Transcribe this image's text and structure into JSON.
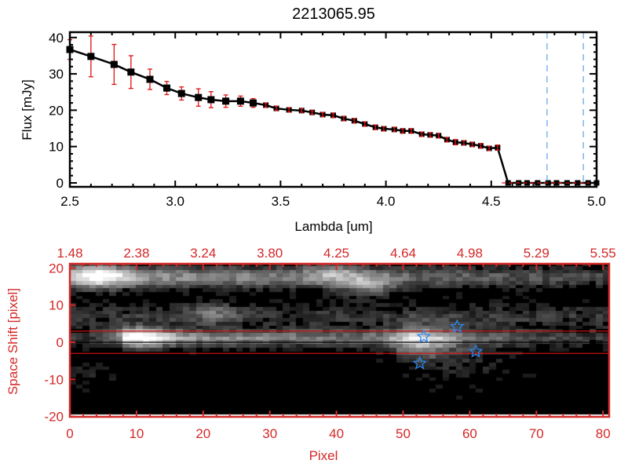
{
  "colors": {
    "axis_bottom": "#d42828",
    "errorbar": "#e01010",
    "marker": "#000000",
    "markerline": "#000000",
    "dashed_vertical": "#3a8ee6",
    "zero_line": "#e01010",
    "star": "#2a86f0",
    "band_line": "#e01010"
  },
  "chart_data": [
    {
      "type": "line",
      "title": "2213065.95",
      "xlabel": "Lambda [um]",
      "ylabel": "Flux [mJy]",
      "xlim": [
        2.5,
        5.0
      ],
      "ylim": [
        -1,
        41
      ],
      "xticks": [
        "2.5",
        "3.0",
        "3.5",
        "4.0",
        "4.5",
        "5.0"
      ],
      "yticks": [
        "0",
        "10",
        "20",
        "30",
        "40"
      ],
      "series": [
        {
          "name": "flux",
          "x": [
            2.5,
            2.6,
            2.71,
            2.79,
            2.88,
            2.96,
            3.03,
            3.11,
            3.17,
            3.24,
            3.31,
            3.37,
            3.43,
            3.48,
            3.54,
            3.6,
            3.65,
            3.7,
            3.75,
            3.8,
            3.85,
            3.9,
            3.95,
            3.99,
            4.04,
            4.08,
            4.12,
            4.17,
            4.21,
            4.25,
            4.29,
            4.33,
            4.37,
            4.41,
            4.45,
            4.49,
            4.53,
            4.58,
            4.63,
            4.67,
            4.72,
            4.77,
            4.81,
            4.86,
            4.91,
            4.96,
            5.0
          ],
          "y": [
            36.7,
            34.8,
            32.6,
            30.5,
            28.5,
            26.1,
            24.6,
            23.5,
            22.9,
            22.5,
            22.5,
            22.0,
            21.4,
            20.5,
            20.1,
            19.9,
            19.4,
            18.8,
            18.6,
            17.7,
            17.1,
            16.2,
            15.3,
            14.9,
            14.7,
            14.3,
            14.3,
            13.4,
            13.2,
            13.0,
            11.9,
            11.2,
            11.0,
            10.6,
            10.2,
            9.5,
            9.7,
            0,
            0,
            0,
            0,
            0,
            0,
            0,
            0,
            0,
            0
          ],
          "yerr": [
            2.7,
            5.6,
            5.5,
            4.5,
            2.8,
            1.8,
            1.8,
            2.4,
            2.2,
            1.7,
            1.4,
            1.2,
            0.6,
            0.6,
            0.6,
            0.5,
            0.5,
            0.6,
            0.6,
            0.6,
            0.6,
            0.6,
            0.6,
            0.6,
            0.6,
            0.6,
            0.6,
            0.6,
            0.6,
            0.6,
            0.6,
            0.7,
            0.6,
            0.6,
            0.6,
            0.6,
            0.7,
            0,
            0,
            0,
            0,
            0,
            0,
            0,
            0,
            0,
            0
          ]
        }
      ],
      "vlines": [
        4.765,
        4.937
      ],
      "hline": 0
    },
    {
      "type": "heatmap",
      "xlabel": "Pixel",
      "ylabel": "Space Shift [pixel]",
      "xlim": [
        0,
        81
      ],
      "ylim": [
        -20,
        21
      ],
      "xticks": [
        "0",
        "10",
        "20",
        "30",
        "40",
        "50",
        "60",
        "70",
        "80"
      ],
      "yticks": [
        "-20",
        "-10",
        "0",
        "10",
        "20"
      ],
      "top_xticks": [
        "1.48",
        "2.38",
        "3.24",
        "3.80",
        "4.25",
        "4.64",
        "4.98",
        "5.29",
        "5.55"
      ],
      "hlines": [
        3,
        0,
        -3
      ],
      "stars": [
        {
          "x": 58.1,
          "y": 4.2
        },
        {
          "x": 53.1,
          "y": 1.5
        },
        {
          "x": 60.9,
          "y": -2.5
        },
        {
          "x": 52.5,
          "y": -5.7
        }
      ]
    }
  ]
}
